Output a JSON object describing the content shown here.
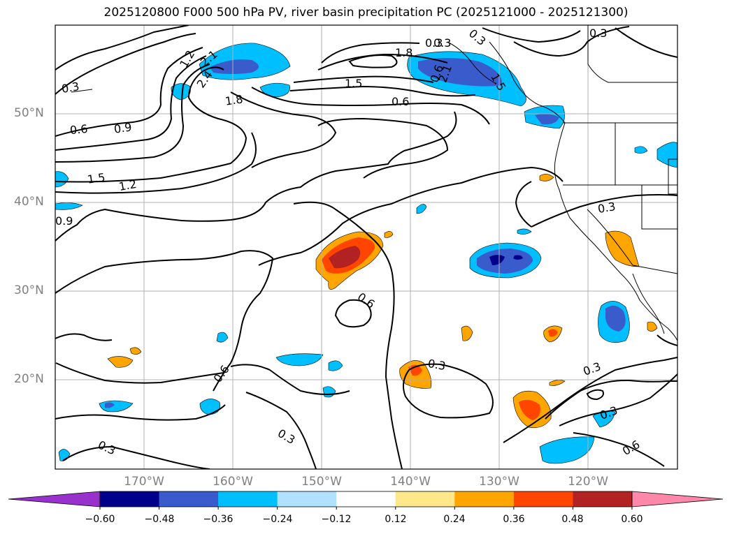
{
  "title": "2025120800 F000 500 hPa PV, river basin precipitation PC (2025121000 - 2025121300)",
  "lat_labels": [
    "50°N",
    "40°N",
    "30°N",
    "20°N"
  ],
  "lon_labels": [
    "170°W",
    "160°W",
    "150°W",
    "140°W",
    "130°W",
    "120°W"
  ],
  "colorbar": {
    "ticks": [
      "−0.60",
      "−0.48",
      "−0.36",
      "−0.24",
      "−0.12",
      "0.12",
      "0.24",
      "0.36",
      "0.48",
      "0.60"
    ],
    "colors": [
      "#9932CC",
      "#00008B",
      "#3A5BCC",
      "#00BFFF",
      "#B0E2FF",
      "#FFFFFF",
      "#FFE88A",
      "#FFA500",
      "#FF4500",
      "#B22222",
      "#FF88AA"
    ]
  },
  "contour_labels": [
    "0.3",
    "0.6",
    "0.9",
    "1.2",
    "1.5",
    "1.8",
    "2.1",
    "2.4",
    "0.3",
    "0.6",
    "1.5",
    "1.2",
    "0.9",
    "0.3",
    "0.6",
    "0.3",
    "0.3",
    "0.6",
    "0.3",
    "0.3",
    "0.3",
    "0.6",
    "0.3",
    "1.8",
    "0.3",
    "1.5",
    "0.6",
    "2.1",
    "0.3"
  ]
}
